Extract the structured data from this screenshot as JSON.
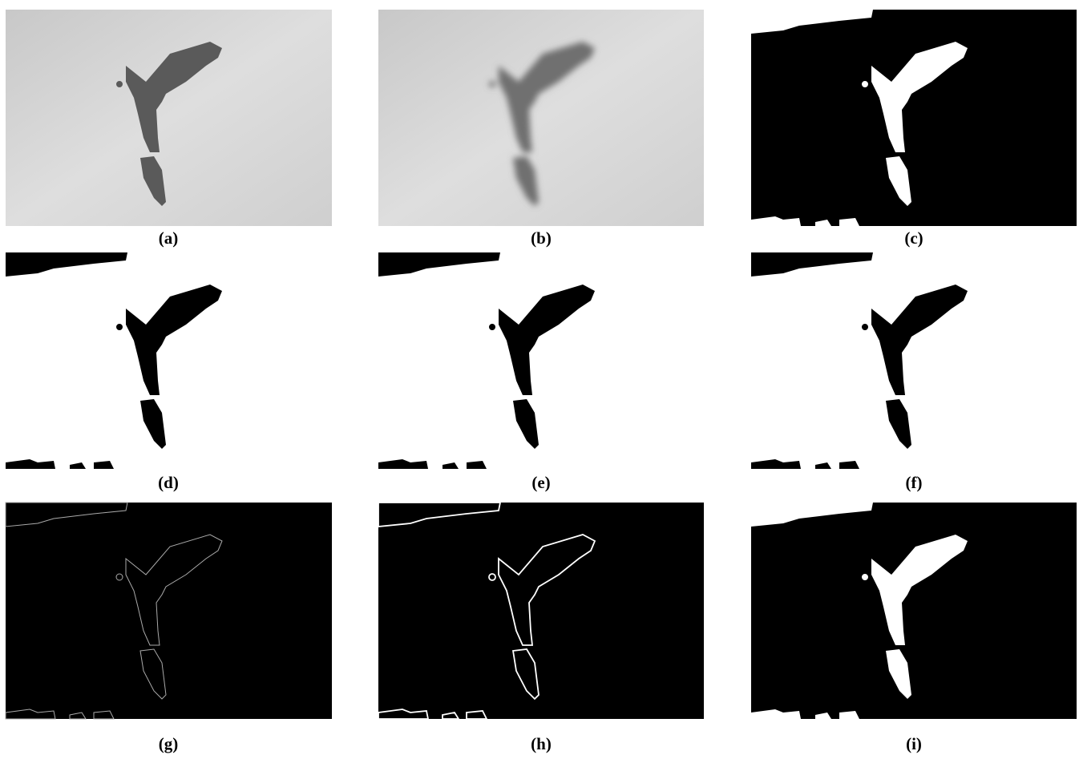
{
  "figure": {
    "panels": [
      {
        "caption": "(a)"
      },
      {
        "caption": "(b)"
      },
      {
        "caption": "(c)"
      },
      {
        "caption": "(d)"
      },
      {
        "caption": "(e)"
      },
      {
        "caption": "(f)"
      },
      {
        "caption": "(g)"
      },
      {
        "caption": "(h)"
      },
      {
        "caption": "(i)"
      }
    ]
  }
}
